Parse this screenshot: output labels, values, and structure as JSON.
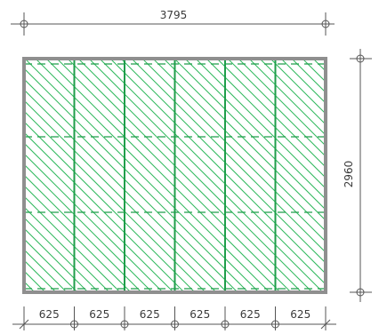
{
  "plan": {
    "overall_width": "3795",
    "overall_height": "2960",
    "panel_count": 6,
    "panel_widths": [
      "625",
      "625",
      "625",
      "625",
      "625",
      "625"
    ],
    "colors": {
      "frame": "#8f8f8f",
      "panel_line": "#1f9e4a",
      "hatch": "#2eb85c",
      "dimension_line": "#555555"
    }
  }
}
